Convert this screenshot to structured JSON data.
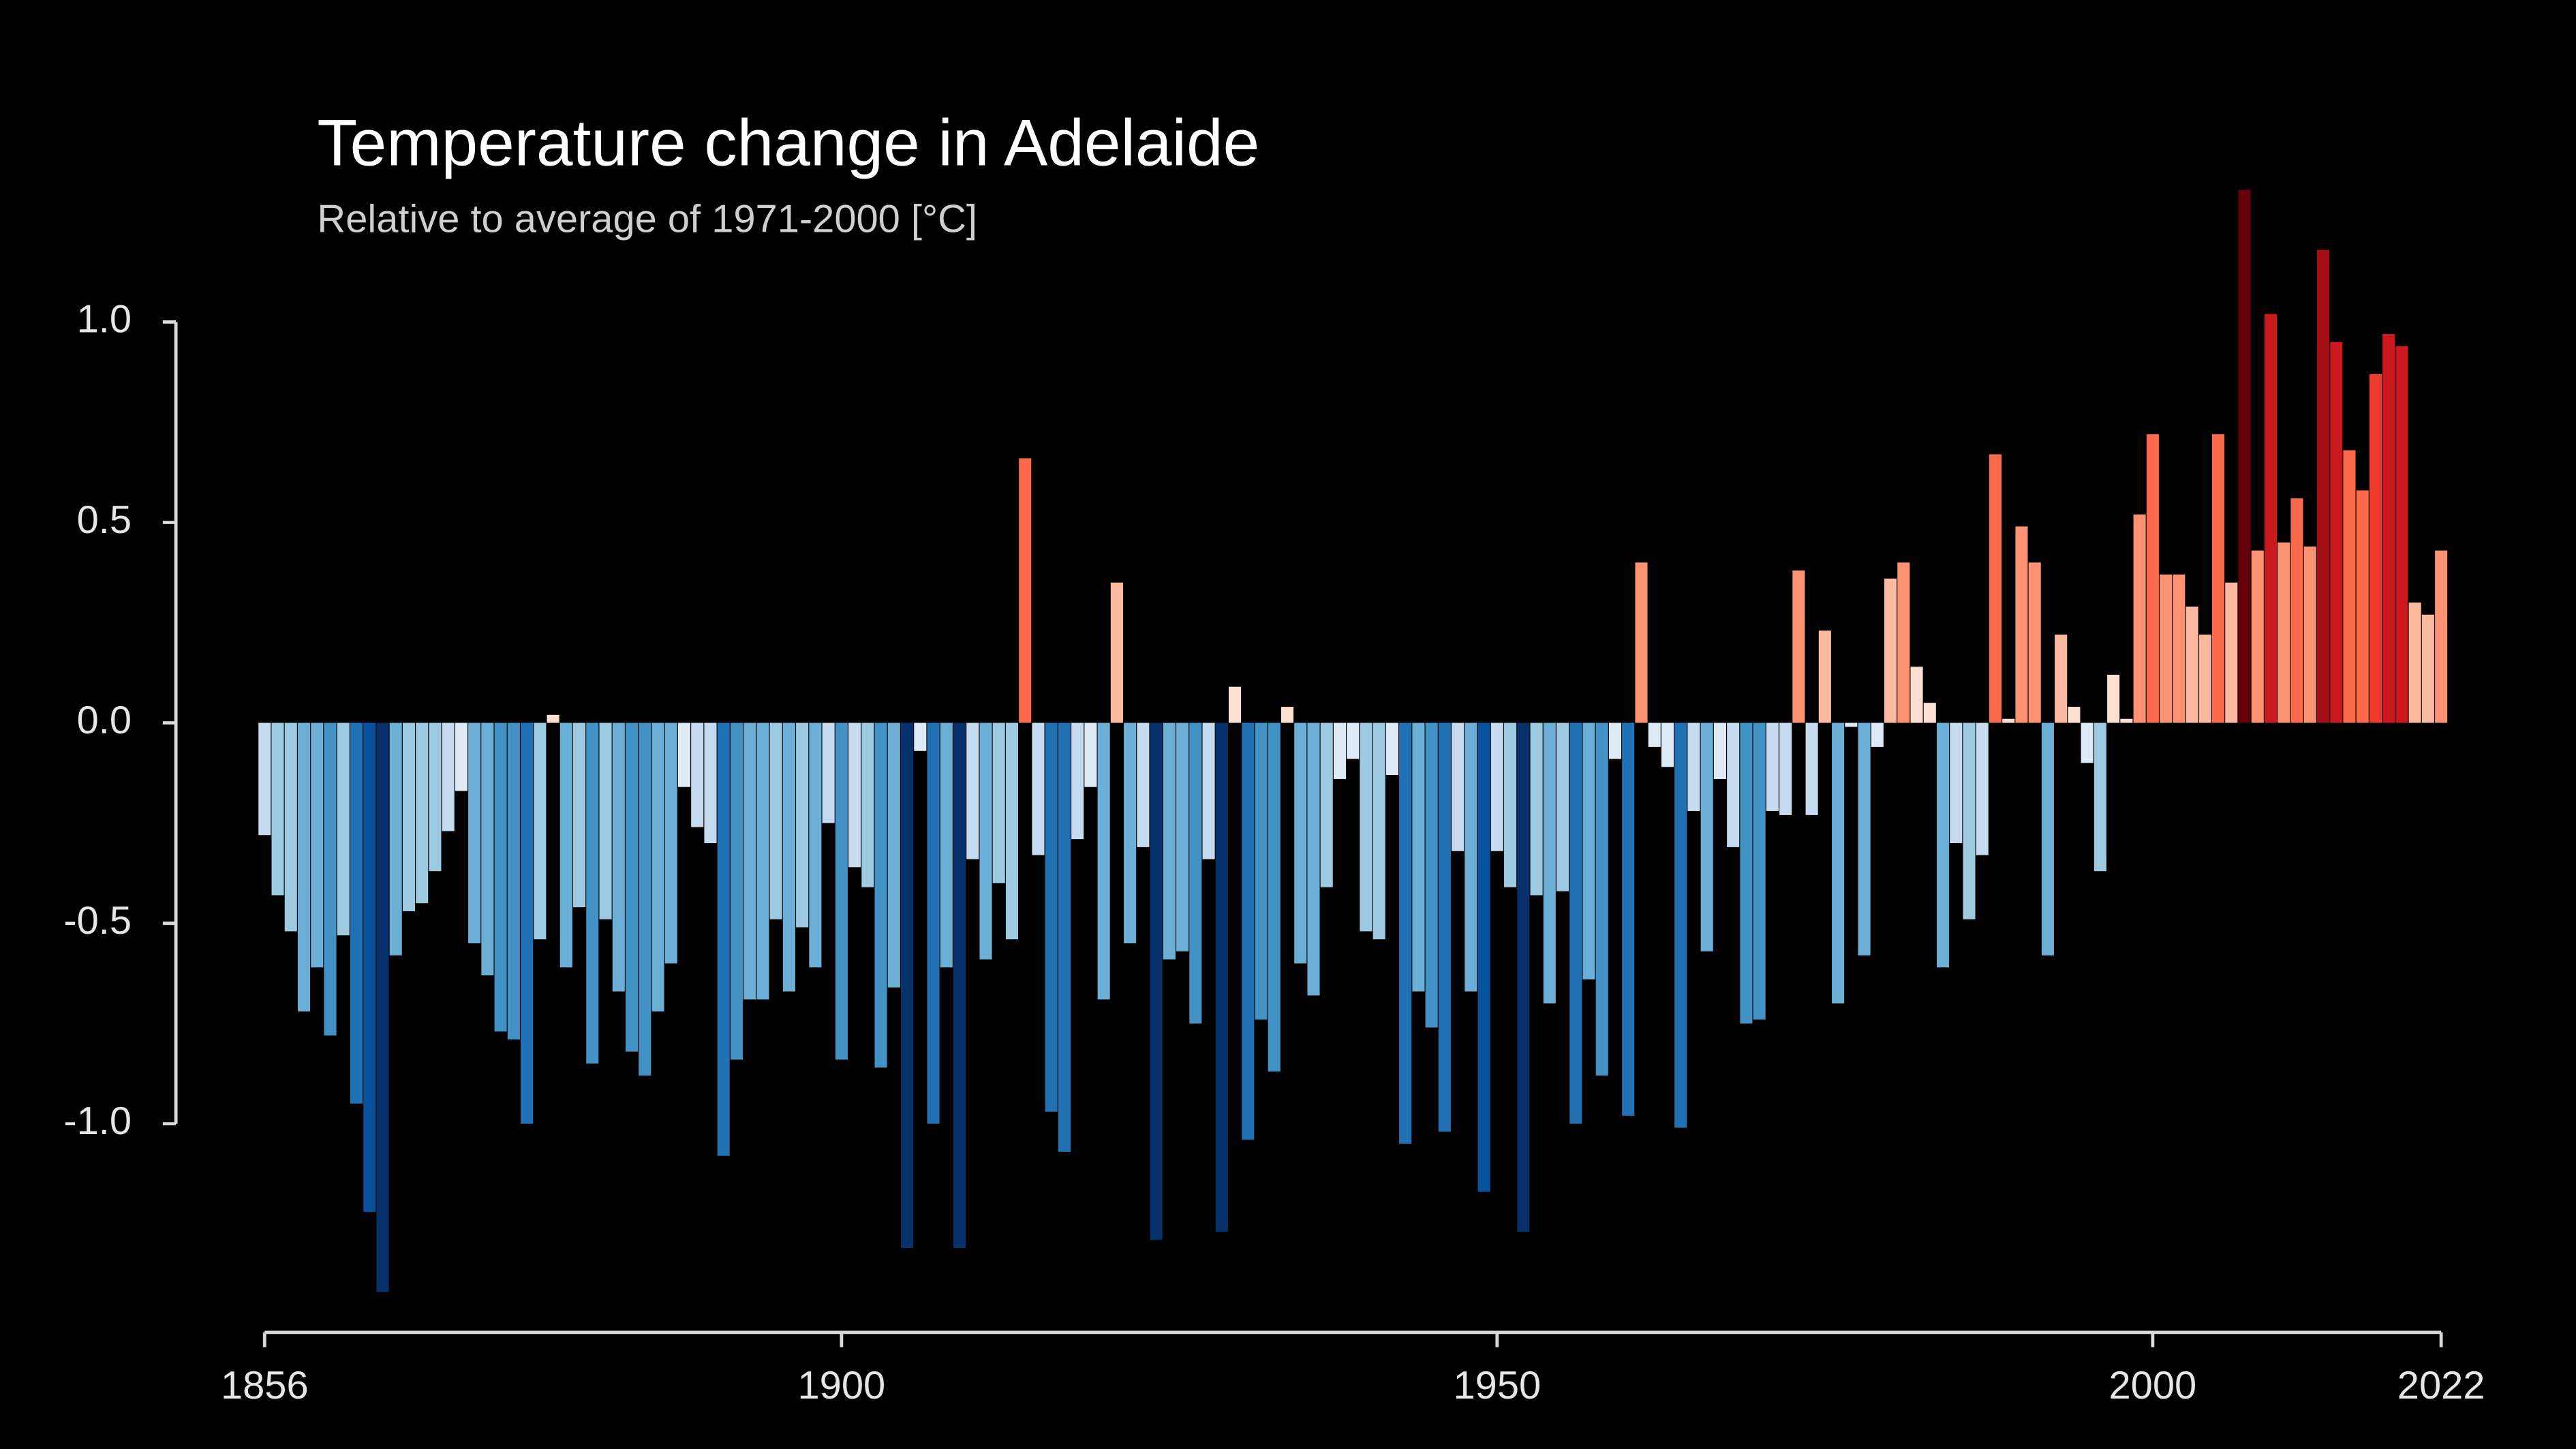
{
  "chart_data": {
    "type": "bar",
    "title": "Temperature change in Adelaide",
    "subtitle": "Relative to average of 1971-2000  [°C]",
    "x": [
      1856,
      1857,
      1858,
      1859,
      1860,
      1861,
      1862,
      1863,
      1864,
      1865,
      1866,
      1867,
      1868,
      1869,
      1870,
      1871,
      1872,
      1873,
      1874,
      1875,
      1876,
      1877,
      1878,
      1879,
      1880,
      1881,
      1882,
      1883,
      1884,
      1885,
      1886,
      1887,
      1888,
      1889,
      1890,
      1891,
      1892,
      1893,
      1894,
      1895,
      1896,
      1897,
      1898,
      1899,
      1900,
      1901,
      1902,
      1903,
      1904,
      1905,
      1906,
      1907,
      1908,
      1909,
      1910,
      1911,
      1912,
      1913,
      1914,
      1915,
      1916,
      1917,
      1918,
      1919,
      1920,
      1921,
      1922,
      1923,
      1924,
      1925,
      1926,
      1927,
      1928,
      1929,
      1930,
      1931,
      1932,
      1933,
      1934,
      1935,
      1936,
      1937,
      1938,
      1939,
      1940,
      1941,
      1942,
      1943,
      1944,
      1945,
      1946,
      1947,
      1948,
      1949,
      1950,
      1951,
      1952,
      1953,
      1954,
      1955,
      1956,
      1957,
      1958,
      1959,
      1960,
      1961,
      1962,
      1963,
      1964,
      1965,
      1966,
      1967,
      1968,
      1969,
      1970,
      1971,
      1972,
      1973,
      1974,
      1975,
      1976,
      1977,
      1978,
      1979,
      1980,
      1981,
      1982,
      1983,
      1984,
      1985,
      1986,
      1987,
      1988,
      1989,
      1990,
      1991,
      1992,
      1993,
      1994,
      1995,
      1996,
      1997,
      1998,
      1999,
      2000,
      2001,
      2002,
      2003,
      2004,
      2005,
      2006,
      2007,
      2008,
      2009,
      2010,
      2011,
      2012,
      2013,
      2014,
      2015,
      2016,
      2017,
      2018,
      2019,
      2020,
      2021,
      2022
    ],
    "values": [
      -0.28,
      -0.43,
      -0.52,
      -0.72,
      -0.61,
      -0.78,
      -0.53,
      -0.95,
      -1.22,
      -1.42,
      -0.58,
      -0.47,
      -0.45,
      -0.37,
      -0.27,
      -0.17,
      -0.55,
      -0.63,
      -0.77,
      -0.79,
      -1.0,
      -0.54,
      0.02,
      -0.61,
      -0.46,
      -0.85,
      -0.49,
      -0.67,
      -0.82,
      -0.88,
      -0.72,
      -0.6,
      -0.16,
      -0.26,
      -0.3,
      -1.08,
      -0.84,
      -0.69,
      -0.69,
      -0.49,
      -0.67,
      -0.51,
      -0.61,
      -0.25,
      -0.84,
      -0.36,
      -0.41,
      -0.86,
      -0.66,
      -1.31,
      -0.07,
      -1.0,
      -0.61,
      -1.31,
      -0.34,
      -0.59,
      -0.4,
      -0.54,
      0.66,
      -0.33,
      -0.97,
      -1.07,
      -0.29,
      -0.16,
      -0.69,
      0.35,
      -0.55,
      -0.31,
      -1.29,
      -0.59,
      -0.57,
      -0.75,
      -0.34,
      -1.27,
      0.09,
      -1.04,
      -0.74,
      -0.87,
      0.04,
      -0.6,
      -0.68,
      -0.41,
      -0.14,
      -0.09,
      -0.52,
      -0.54,
      -0.13,
      -1.05,
      -0.67,
      -0.76,
      -1.02,
      -0.32,
      -0.67,
      -1.17,
      -0.32,
      -0.41,
      -1.27,
      -0.43,
      -0.7,
      -0.42,
      -1.0,
      -0.64,
      -0.88,
      -0.09,
      -0.98,
      0.4,
      -0.06,
      -0.11,
      -1.01,
      -0.22,
      -0.57,
      -0.14,
      -0.31,
      -0.75,
      -0.74,
      -0.22,
      -0.23,
      0.38,
      -0.23,
      0.23,
      -0.7,
      -0.01,
      -0.58,
      -0.06,
      0.36,
      0.4,
      0.14,
      0.05,
      -0.61,
      -0.3,
      -0.49,
      -0.33,
      0.67,
      0.01,
      0.49,
      0.4,
      -0.58,
      0.22,
      0.04,
      -0.1,
      -0.37,
      0.12,
      0.01,
      0.52,
      0.72,
      0.37,
      0.37,
      0.29,
      0.22,
      0.72,
      0.35,
      1.33,
      0.43,
      1.02,
      0.45,
      0.56,
      0.44,
      1.18,
      0.95,
      0.68,
      0.58,
      0.87,
      0.97,
      0.94,
      0.3,
      0.27,
      0.43
    ],
    "colormap": [
      "#08306b",
      "#08519c",
      "#2171b5",
      "#4292c6",
      "#6baed6",
      "#9ecae1",
      "#c6dbef",
      "#deebf7",
      "#fee0d2",
      "#fcbba1",
      "#fc9272",
      "#fb6a4a",
      "#ef3b2c",
      "#cb181d",
      "#a50f15",
      "#67000d"
    ],
    "xlim": [
      1856,
      2022
    ],
    "xticks": [
      1856,
      1900,
      1950,
      2000,
      2022
    ],
    "ylim": [
      -1.45,
      1.35
    ],
    "yticks": [
      {
        "value": -1,
        "label": "-1.0"
      },
      {
        "value": -0.5,
        "label": "-0.5"
      },
      {
        "value": 0,
        "label": "0.0"
      },
      {
        "value": 0.5,
        "label": "0.5"
      },
      {
        "value": 1,
        "label": "1.0"
      }
    ],
    "grid": false
  }
}
